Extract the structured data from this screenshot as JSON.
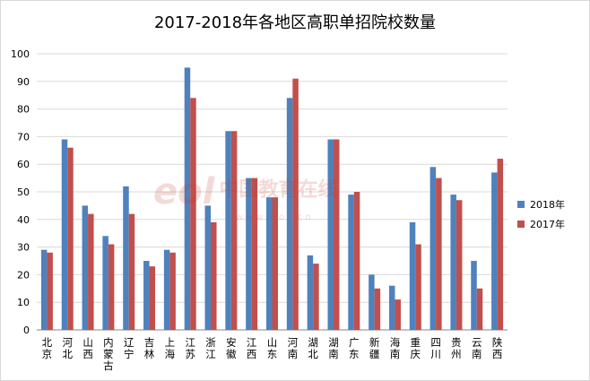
{
  "chart_data": {
    "type": "bar",
    "title": "2017-2018年各地区高职单招院校数量",
    "categories": [
      "北京",
      "河北",
      "山西",
      "内蒙古",
      "辽宁",
      "吉林",
      "上海",
      "江苏",
      "浙江",
      "安徽",
      "江西",
      "山东",
      "河南",
      "湖北",
      "湖南",
      "广东",
      "新疆",
      "海南",
      "重庆",
      "四川",
      "贵州",
      "云南",
      "陕西"
    ],
    "series": [
      {
        "name": "2018年",
        "color": "#4f81bd",
        "values": [
          29,
          69,
          45,
          34,
          52,
          25,
          29,
          95,
          45,
          72,
          55,
          48,
          84,
          27,
          69,
          49,
          20,
          16,
          39,
          59,
          49,
          25,
          57
        ]
      },
      {
        "name": "2017年",
        "color": "#c0504d",
        "values": [
          28,
          66,
          42,
          31,
          42,
          23,
          28,
          84,
          39,
          72,
          55,
          48,
          91,
          24,
          69,
          50,
          15,
          11,
          31,
          55,
          47,
          15,
          62
        ]
      }
    ],
    "ylim": [
      0,
      100
    ],
    "yticks": [
      0,
      10,
      20,
      30,
      40,
      50,
      60,
      70,
      80,
      90,
      100
    ],
    "grid": true,
    "legend_position": "right"
  },
  "watermark": {
    "logo": "eol",
    "text": "中国教育在线",
    "url": "www.eol.cn"
  }
}
